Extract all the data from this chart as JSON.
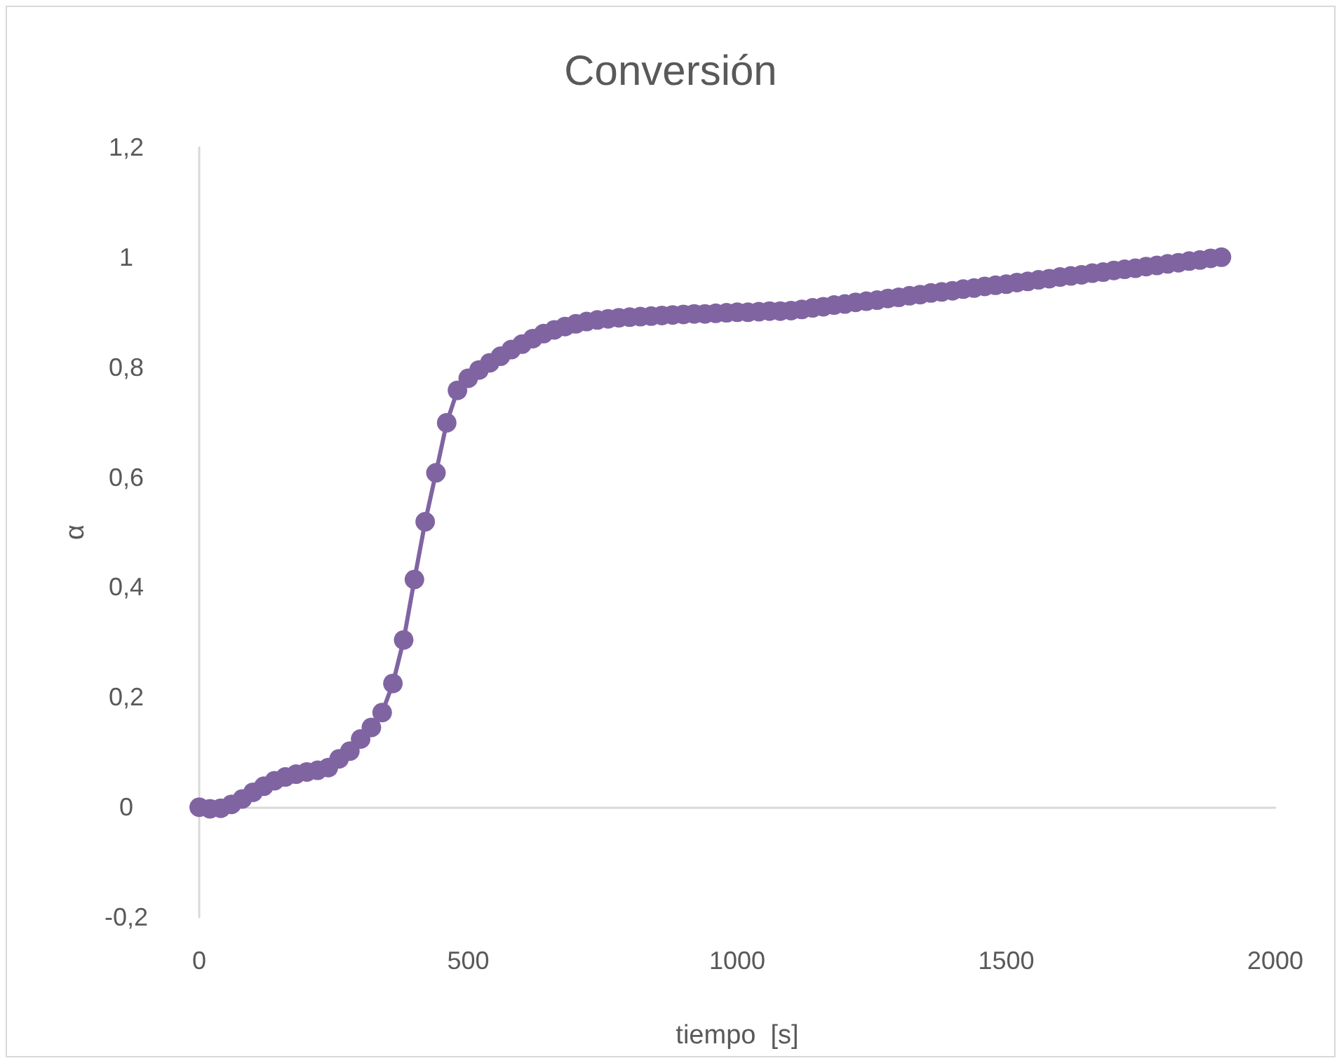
{
  "chart_data": {
    "type": "line",
    "title": "Conversión",
    "xlabel": "tiempo  [s]",
    "ylabel": "α",
    "x": [
      0,
      20,
      40,
      60,
      80,
      100,
      120,
      140,
      160,
      180,
      200,
      220,
      240,
      260,
      280,
      300,
      320,
      340,
      360,
      380,
      400,
      420,
      440,
      460,
      480,
      500,
      520,
      540,
      560,
      580,
      600,
      620,
      640,
      660,
      680,
      700,
      720,
      740,
      760,
      780,
      800,
      820,
      840,
      860,
      880,
      900,
      920,
      940,
      960,
      980,
      1000,
      1020,
      1040,
      1060,
      1080,
      1100,
      1120,
      1140,
      1160,
      1180,
      1200,
      1220,
      1240,
      1260,
      1280,
      1300,
      1320,
      1340,
      1360,
      1380,
      1400,
      1420,
      1440,
      1460,
      1480,
      1500,
      1520,
      1540,
      1560,
      1580,
      1600,
      1620,
      1640,
      1660,
      1680,
      1700,
      1720,
      1740,
      1760,
      1780,
      1800,
      1820,
      1840,
      1860,
      1880,
      1900
    ],
    "series": [
      {
        "color": "#8064a2",
        "values": [
          0,
          -0.003,
          -0.002,
          0.005,
          0.015,
          0.027,
          0.038,
          0.048,
          0.055,
          0.06,
          0.064,
          0.067,
          0.072,
          0.088,
          0.102,
          0.124,
          0.145,
          0.172,
          0.225,
          0.304,
          0.414,
          0.519,
          0.608,
          0.699,
          0.758,
          0.78,
          0.795,
          0.808,
          0.82,
          0.832,
          0.842,
          0.852,
          0.861,
          0.868,
          0.874,
          0.879,
          0.883,
          0.886,
          0.888,
          0.89,
          0.891,
          0.892,
          0.893,
          0.894,
          0.895,
          0.896,
          0.897,
          0.897,
          0.898,
          0.899,
          0.9,
          0.9,
          0.901,
          0.902,
          0.902,
          0.903,
          0.905,
          0.908,
          0.91,
          0.913,
          0.915,
          0.918,
          0.92,
          0.922,
          0.925,
          0.927,
          0.93,
          0.932,
          0.935,
          0.937,
          0.939,
          0.942,
          0.944,
          0.947,
          0.949,
          0.951,
          0.954,
          0.956,
          0.959,
          0.961,
          0.964,
          0.966,
          0.968,
          0.971,
          0.973,
          0.976,
          0.978,
          0.98,
          0.983,
          0.985,
          0.988,
          0.99,
          0.993,
          0.995,
          0.998,
          1.0
        ]
      }
    ],
    "xlim": [
      0,
      2000
    ],
    "xticks": [
      0,
      500,
      1000,
      1500,
      2000
    ],
    "ylim": [
      -0.2,
      1.2
    ],
    "yticks": [
      {
        "value": -0.2,
        "label": "-0,2"
      },
      {
        "value": 0,
        "label": "0"
      },
      {
        "value": 0.2,
        "label": "0,2"
      },
      {
        "value": 0.4,
        "label": "0,4"
      },
      {
        "value": 0.6,
        "label": "0,6"
      },
      {
        "value": 0.8,
        "label": "0,8"
      },
      {
        "value": 1,
        "label": "1"
      },
      {
        "value": 1.2,
        "label": "1,2"
      }
    ],
    "marker": "circle",
    "line_style": "solid"
  }
}
